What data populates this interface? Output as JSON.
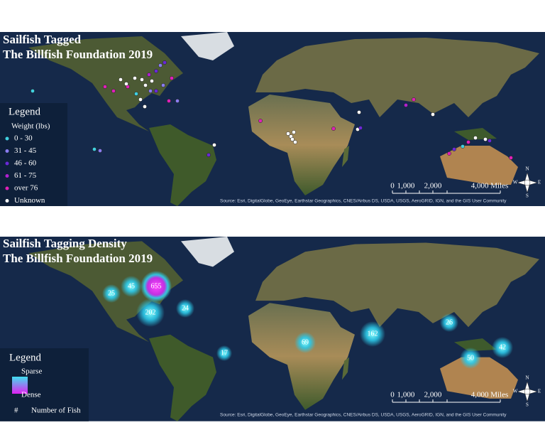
{
  "top_map": {
    "title_line1": "Sailfish Tagged",
    "title_line2": "The Billfish Foundation 2019",
    "legend": {
      "title": "Legend",
      "subtitle": "Weight (lbs)",
      "items": [
        {
          "label": "0 - 30",
          "color": "#40d0e0"
        },
        {
          "label": "31 - 45",
          "color": "#8a7cf0"
        },
        {
          "label": "46 - 60",
          "color": "#6a28d8"
        },
        {
          "label": "61 - 75",
          "color": "#b020d0"
        },
        {
          "label": "over 76",
          "color": "#e020b8"
        },
        {
          "label": "Unknown",
          "color": "#ffffff"
        }
      ]
    },
    "scale": [
      "0",
      "1,000",
      "2,000",
      "4,000 Miles"
    ],
    "compass": [
      "N",
      "S",
      "E",
      "W"
    ],
    "source": "Source: Esri, DigitalGlobe, GeoEye, Earthstar Geographics, CNES/Airbus DS, USDA, USGS, AeroGRID, IGN, and the GIS User Community"
  },
  "bottom_map": {
    "title_line1": "Sailfish Tagging Density",
    "title_line2": "The Billfish Foundation 2019",
    "legend": {
      "title": "Legend",
      "sparse": "Sparse",
      "dense": "Dense",
      "hash": "#",
      "count_label": "Number of Fish"
    },
    "clusters": [
      655,
      45,
      25,
      202,
      24,
      17,
      69,
      162,
      26,
      50,
      42
    ],
    "scale": [
      "0",
      "1,000",
      "2,000",
      "4,000 Miles"
    ],
    "compass": [
      "N",
      "S",
      "E",
      "W"
    ],
    "source": "Source: Esri, DigitalGlobe, GeoEye, Earthstar Geographics, CNES/Airbus DS, USDA, USGS, AeroGRID, IGN, and the GIS User Community"
  }
}
